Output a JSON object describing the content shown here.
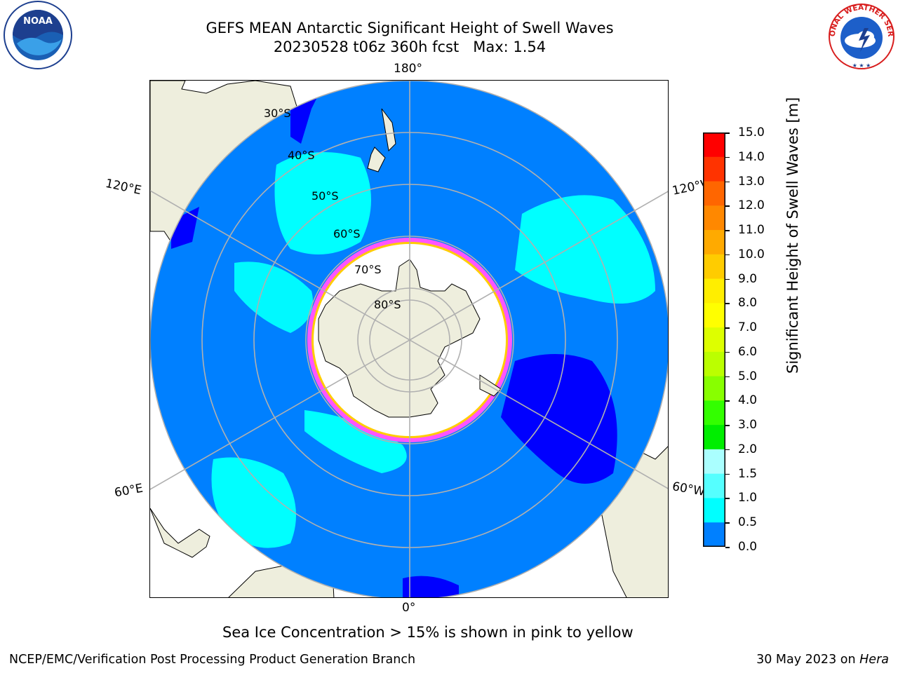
{
  "header": {
    "title_line1": "GEFS MEAN Antarctic Significant Height of Swell Waves",
    "title_line2": "20230528 t06z 360h fcst   Max: 1.54"
  },
  "logos": {
    "left": {
      "icon": "noaa-logo-icon",
      "text": "NOAA"
    },
    "right": {
      "icon": "national-weather-service-logo-icon",
      "text": "NATIONAL WEATHER SERVICE"
    }
  },
  "map": {
    "longitude_labels": {
      "top": "180°",
      "bottom": "0°",
      "upper_left": "120°E",
      "upper_right": "120°W",
      "lower_left": "60°E",
      "lower_right": "60°W"
    },
    "latitude_labels": [
      "30°S",
      "40°S",
      "50°S",
      "60°S",
      "70°S",
      "80°S"
    ],
    "colors": {
      "land": "#eeeedd",
      "ocean_default": "#0080ff",
      "ice_pink": "#ff55ff",
      "ice_yellow": "#ffcc00"
    }
  },
  "colorbar": {
    "title": "Significant Height of Swell Waves [m]",
    "ticks": [
      "15.0",
      "14.0",
      "13.0",
      "12.0",
      "11.0",
      "10.0",
      "9.0",
      "8.0",
      "7.0",
      "6.0",
      "5.0",
      "4.0",
      "3.0",
      "2.0",
      "1.5",
      "1.0",
      "0.5",
      "0.0"
    ],
    "colors": [
      "#ff0000",
      "#ff3300",
      "#ff6600",
      "#ff8800",
      "#ffaa00",
      "#ffcc00",
      "#ffee00",
      "#ffff00",
      "#ddff00",
      "#bbff00",
      "#88ff00",
      "#33ff00",
      "#00ee00",
      "#55ff88",
      "#aaffff",
      "#55ffff",
      "#00ffff",
      "#0080ff",
      "#0000ff"
    ]
  },
  "note": "Sea Ice Concentration > 15% is shown in pink to yellow",
  "footer": {
    "left": "NCEP/EMC/Verification Post Processing Product Generation Branch",
    "date": "30 May 2023 on ",
    "machine": "Hera"
  }
}
